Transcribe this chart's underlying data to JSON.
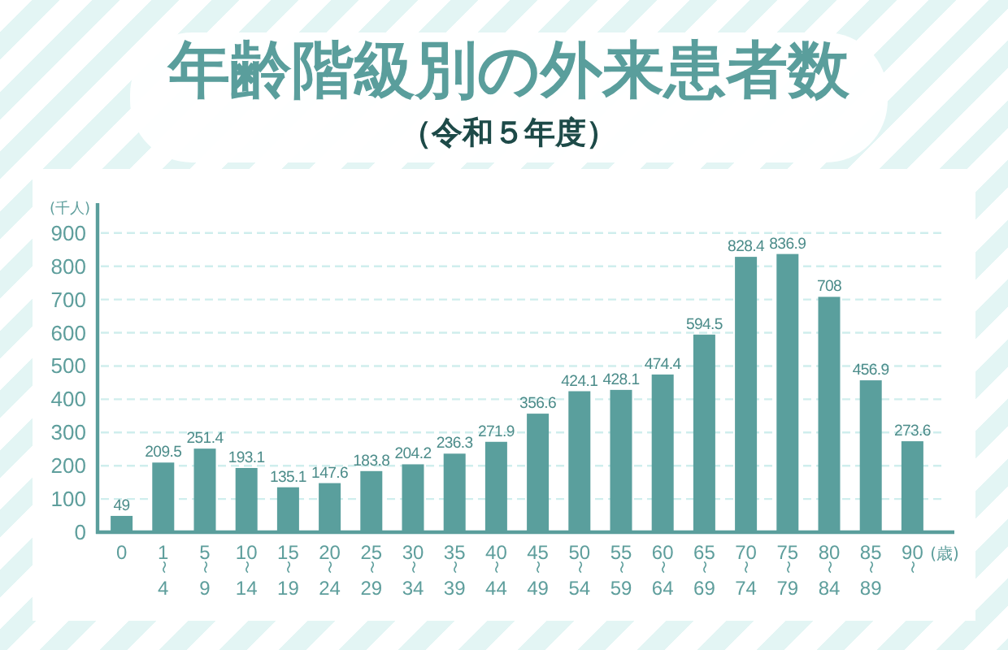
{
  "chart_data": {
    "type": "bar",
    "title": "年齢階級別の外来患者数",
    "subtitle": "（令和５年度）",
    "ylabel": "(千人)",
    "xlabel": "(歳)",
    "categories": [
      "0",
      "1\n〜\n4",
      "5\n〜\n9",
      "10\n〜\n14",
      "15\n〜\n19",
      "20\n〜\n24",
      "25\n〜\n29",
      "30\n〜\n34",
      "35\n〜\n39",
      "40\n〜\n44",
      "45\n〜\n49",
      "50\n〜\n54",
      "55\n〜\n59",
      "60\n〜\n64",
      "65\n〜\n69",
      "70\n〜\n74",
      "75\n〜\n79",
      "80\n〜\n84",
      "85\n〜\n89",
      "90\n〜"
    ],
    "values": [
      49,
      209.5,
      251.4,
      193.1,
      135.1,
      147.6,
      183.8,
      204.2,
      236.3,
      271.9,
      356.6,
      424.1,
      428.1,
      474.4,
      594.5,
      828.4,
      836.9,
      708,
      456.9,
      273.6
    ],
    "color": "#5a9f9d",
    "ylim": [
      0,
      990
    ],
    "yticks": [
      0,
      100,
      200,
      300,
      400,
      500,
      600,
      700,
      800,
      900
    ],
    "grid": "y",
    "data_labels": true
  }
}
